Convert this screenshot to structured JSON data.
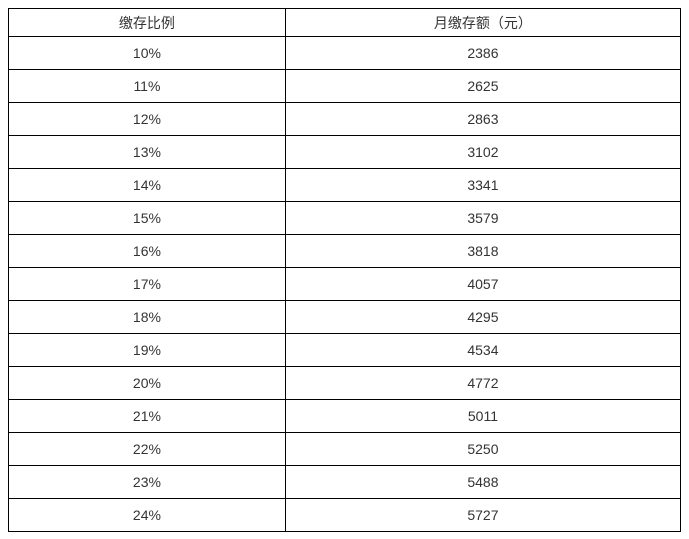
{
  "table": {
    "headers": {
      "ratio": "缴存比例",
      "amount": "月缴存额（元）"
    },
    "rows": [
      {
        "ratio": "10%",
        "amount": "2386"
      },
      {
        "ratio": "11%",
        "amount": "2625"
      },
      {
        "ratio": "12%",
        "amount": "2863"
      },
      {
        "ratio": "13%",
        "amount": "3102"
      },
      {
        "ratio": "14%",
        "amount": "3341"
      },
      {
        "ratio": "15%",
        "amount": "3579"
      },
      {
        "ratio": "16%",
        "amount": "3818"
      },
      {
        "ratio": "17%",
        "amount": "4057"
      },
      {
        "ratio": "18%",
        "amount": "4295"
      },
      {
        "ratio": "19%",
        "amount": "4534"
      },
      {
        "ratio": "20%",
        "amount": "4772"
      },
      {
        "ratio": "21%",
        "amount": "5011"
      },
      {
        "ratio": "22%",
        "amount": "5250"
      },
      {
        "ratio": "23%",
        "amount": "5488"
      },
      {
        "ratio": "24%",
        "amount": "5727"
      }
    ],
    "colors": {
      "border": "#000000",
      "text": "#333333",
      "background": "#ffffff"
    }
  }
}
